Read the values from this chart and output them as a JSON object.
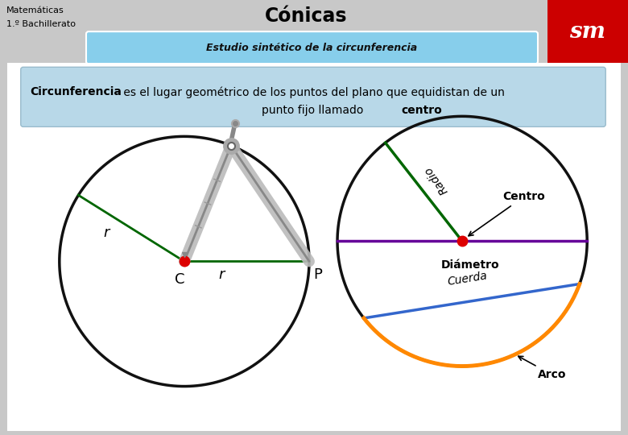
{
  "bg_color": "#C8C8C8",
  "header_bg": "#FFD700",
  "header_title": "Cónicas",
  "subtitle_box_text": "Estudio sintético de la circunferencia",
  "subtitle_box_color": "#87CEEB",
  "sm_logo_bg": "#CC0000",
  "sm_logo_text": "sm",
  "definition_box_color": "#B8D8E8",
  "main_bg": "#FFFFFF",
  "green_line_color": "#006600",
  "purple_line_color": "#660099",
  "blue_line_color": "#3366CC",
  "orange_line_color": "#FF8800",
  "red_dot_color": "#DD0000",
  "circle_line_color": "#111111",
  "compass_color": "#AAAAAA",
  "compass_dark": "#888888"
}
